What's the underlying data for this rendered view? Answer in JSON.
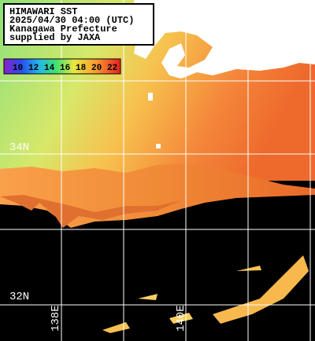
{
  "header": {
    "lines": [
      "HIMAWARI SST",
      "2025/04/30 04:00 (UTC)",
      "Kanagawa Prefecture",
      "supplied by JAXA"
    ]
  },
  "legend": {
    "labels": [
      "10",
      "12",
      "14",
      "16",
      "18",
      "20",
      "22"
    ]
  },
  "grid_labels": {
    "latitudes": [
      "34N",
      "32N"
    ],
    "longitudes": [
      "138E",
      "140E"
    ]
  }
}
